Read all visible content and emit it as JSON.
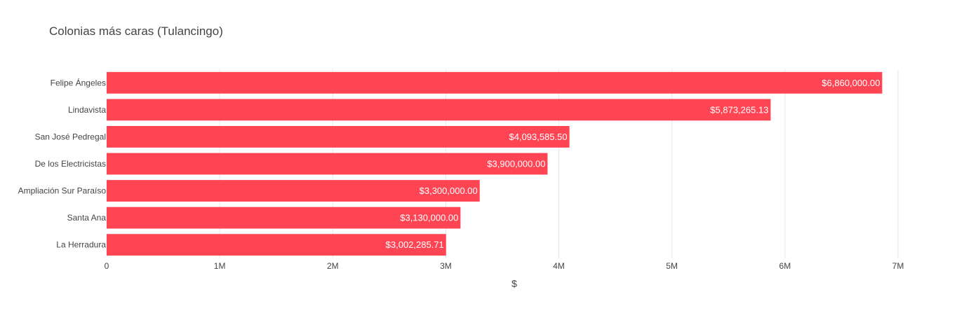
{
  "chart_data": {
    "type": "bar",
    "orientation": "horizontal",
    "title": "Colonias más caras (Tulancingo)",
    "xlabel": "$",
    "ylabel": "",
    "xlim": [
      0,
      7000000
    ],
    "x_ticks": [
      {
        "value": 0,
        "label": "0"
      },
      {
        "value": 1000000,
        "label": "1M"
      },
      {
        "value": 2000000,
        "label": "2M"
      },
      {
        "value": 3000000,
        "label": "3M"
      },
      {
        "value": 4000000,
        "label": "4M"
      },
      {
        "value": 5000000,
        "label": "5M"
      },
      {
        "value": 6000000,
        "label": "6M"
      },
      {
        "value": 7000000,
        "label": "7M"
      }
    ],
    "categories": [
      "Felipe Ángeles",
      "Lindavista",
      "San José Pedregal",
      "De los Electricistas",
      "Ampliación Sur Paraíso",
      "Santa Ana",
      "La Herradura"
    ],
    "values": [
      6860000.0,
      5873265.13,
      4093585.5,
      3900000.0,
      3300000.0,
      3130000.0,
      3002285.71
    ],
    "data_labels": [
      "$6,860,000.00",
      "$5,873,265.13",
      "$4,093,585.50",
      "$3,900,000.00",
      "$3,300,000.00",
      "$3,130,000.00",
      "$3,002,285.71"
    ],
    "grid": true,
    "legend": "none",
    "colors": {
      "bar": "#ff4554",
      "grid": "#e6e6e6",
      "text": "#444444",
      "label": "#ffffff"
    }
  }
}
